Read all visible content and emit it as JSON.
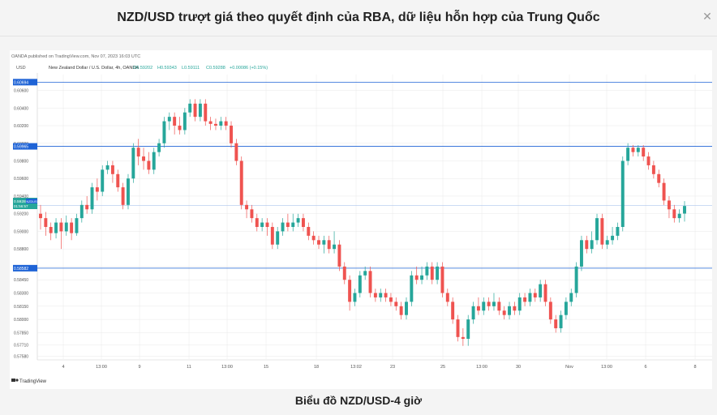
{
  "header": {
    "title": "NZD/USD trượt giá theo quyết định của RBA, dữ liệu hỗn hợp của Trung Quốc",
    "close_icon": "close-icon"
  },
  "chart": {
    "publisher": "OANDA published on TradingView.com, Nov 07, 2023 16:03 UTC",
    "axis_label": "USD",
    "symbol": "New Zealand Dollar / U.S. Dollar, 4h, OANDA",
    "ohlc": {
      "o": "O0.59202",
      "h": "H0.59343",
      "l": "L0.59111",
      "c": "C0.59288",
      "chg": "+0.00086 (+0.15%)"
    },
    "price_tag_value": "0.59288",
    "price_tag_name": "NZDUSD",
    "price_tag_timer": "01:56:57",
    "colors": {
      "up": "#26a69a",
      "down": "#ef5350",
      "level": "#1e63d6",
      "grid": "#e8e8e8"
    },
    "brand": "TradingView",
    "brand_icon": "tradingview-logo-icon"
  },
  "caption": "Biểu đồ NZD/USD-4 giờ",
  "chart_data": {
    "type": "candlestick",
    "title": "New Zealand Dollar / U.S. Dollar, 4h, OANDA",
    "ylabel": "USD",
    "ylim": [
      0.5755,
      0.6078
    ],
    "y_ticks": [
      "0.60600",
      "0.60400",
      "0.60200",
      "0.60000",
      "0.59800",
      "0.59600",
      "0.59400",
      "0.59200",
      "0.59000",
      "0.58800",
      "0.58600",
      "0.58450",
      "0.58300",
      "0.58150",
      "0.58000",
      "0.57850",
      "0.57710",
      "0.57580"
    ],
    "x_ticks": [
      "4",
      "13:00",
      "9",
      "11",
      "13:00",
      "15",
      "18",
      "13:02",
      "23",
      "25",
      "13:00",
      "30",
      "Nov",
      "13:00",
      "6",
      "8"
    ],
    "levels": [
      {
        "label": "0.60694",
        "value": 0.60694
      },
      {
        "label": "0.59965",
        "value": 0.59965
      },
      {
        "label": "0.58582",
        "value": 0.58582
      }
    ],
    "secondary_level": {
      "label": "0.59294",
      "value": 0.59294
    },
    "last_price": 0.59288,
    "candles": [
      [
        0.592,
        0.5915,
        0.593,
        0.5902
      ],
      [
        0.5915,
        0.5905,
        0.5922,
        0.5895
      ],
      [
        0.5905,
        0.5898,
        0.591,
        0.589
      ],
      [
        0.5898,
        0.591,
        0.5915,
        0.5892
      ],
      [
        0.591,
        0.59,
        0.5915,
        0.588
      ],
      [
        0.59,
        0.591,
        0.5918,
        0.5895
      ],
      [
        0.591,
        0.5898,
        0.5915,
        0.589
      ],
      [
        0.5898,
        0.5915,
        0.592,
        0.5895
      ],
      [
        0.5915,
        0.593,
        0.5935,
        0.591
      ],
      [
        0.593,
        0.5925,
        0.594,
        0.592
      ],
      [
        0.5925,
        0.595,
        0.5955,
        0.592
      ],
      [
        0.595,
        0.5945,
        0.596,
        0.5935
      ],
      [
        0.5945,
        0.597,
        0.5975,
        0.594
      ],
      [
        0.597,
        0.5975,
        0.598,
        0.5965
      ],
      [
        0.5975,
        0.5965,
        0.598,
        0.5955
      ],
      [
        0.5965,
        0.595,
        0.597,
        0.5945
      ],
      [
        0.595,
        0.593,
        0.5955,
        0.5925
      ],
      [
        0.593,
        0.596,
        0.5965,
        0.5925
      ],
      [
        0.596,
        0.5995,
        0.6,
        0.5955
      ],
      [
        0.5995,
        0.5985,
        0.6005,
        0.5975
      ],
      [
        0.5985,
        0.598,
        0.5995,
        0.597
      ],
      [
        0.598,
        0.597,
        0.599,
        0.5965
      ],
      [
        0.597,
        0.599,
        0.5995,
        0.5965
      ],
      [
        0.599,
        0.6,
        0.6005,
        0.5985
      ],
      [
        0.6,
        0.6025,
        0.603,
        0.5995
      ],
      [
        0.6025,
        0.603,
        0.6035,
        0.6015
      ],
      [
        0.603,
        0.602,
        0.6035,
        0.601
      ],
      [
        0.602,
        0.6015,
        0.603,
        0.601
      ],
      [
        0.6015,
        0.6035,
        0.604,
        0.601
      ],
      [
        0.6035,
        0.6045,
        0.605,
        0.603
      ],
      [
        0.6045,
        0.603,
        0.605,
        0.6025
      ],
      [
        0.603,
        0.6045,
        0.605,
        0.6025
      ],
      [
        0.6045,
        0.6025,
        0.605,
        0.602
      ],
      [
        0.6025,
        0.6022,
        0.603,
        0.6015
      ],
      [
        0.6022,
        0.602,
        0.6028,
        0.6015
      ],
      [
        0.602,
        0.6025,
        0.603,
        0.6015
      ],
      [
        0.6025,
        0.602,
        0.603,
        0.6015
      ],
      [
        0.602,
        0.6,
        0.6025,
        0.5995
      ],
      [
        0.6,
        0.598,
        0.6005,
        0.5975
      ],
      [
        0.598,
        0.593,
        0.5985,
        0.5925
      ],
      [
        0.593,
        0.5925,
        0.5935,
        0.5915
      ],
      [
        0.5925,
        0.5915,
        0.593,
        0.591
      ],
      [
        0.5915,
        0.5905,
        0.592,
        0.59
      ],
      [
        0.5905,
        0.591,
        0.5915,
        0.59
      ],
      [
        0.591,
        0.5905,
        0.5915,
        0.5895
      ],
      [
        0.5905,
        0.5885,
        0.591,
        0.588
      ],
      [
        0.5885,
        0.59,
        0.5905,
        0.588
      ],
      [
        0.59,
        0.591,
        0.5915,
        0.5895
      ],
      [
        0.591,
        0.5905,
        0.592,
        0.59
      ],
      [
        0.5905,
        0.591,
        0.592,
        0.59
      ],
      [
        0.591,
        0.5915,
        0.592,
        0.5905
      ],
      [
        0.5915,
        0.5905,
        0.592,
        0.59
      ],
      [
        0.5905,
        0.5895,
        0.591,
        0.589
      ],
      [
        0.5895,
        0.589,
        0.59,
        0.5885
      ],
      [
        0.589,
        0.5885,
        0.5895,
        0.588
      ],
      [
        0.5885,
        0.589,
        0.5895,
        0.5875
      ],
      [
        0.589,
        0.588,
        0.5895,
        0.5875
      ],
      [
        0.588,
        0.5885,
        0.59,
        0.5875
      ],
      [
        0.5885,
        0.586,
        0.589,
        0.5855
      ],
      [
        0.586,
        0.5845,
        0.5865,
        0.584
      ],
      [
        0.5845,
        0.582,
        0.585,
        0.581
      ],
      [
        0.582,
        0.583,
        0.5835,
        0.5815
      ],
      [
        0.583,
        0.585,
        0.5855,
        0.5825
      ],
      [
        0.585,
        0.5855,
        0.586,
        0.5845
      ],
      [
        0.5855,
        0.583,
        0.586,
        0.5825
      ],
      [
        0.583,
        0.5825,
        0.5835,
        0.582
      ],
      [
        0.5825,
        0.583,
        0.5835,
        0.582
      ],
      [
        0.583,
        0.5825,
        0.5835,
        0.582
      ],
      [
        0.5825,
        0.582,
        0.583,
        0.5815
      ],
      [
        0.582,
        0.5815,
        0.5825,
        0.581
      ],
      [
        0.5815,
        0.5805,
        0.582,
        0.58
      ],
      [
        0.5805,
        0.582,
        0.5825,
        0.58
      ],
      [
        0.582,
        0.585,
        0.5855,
        0.5815
      ],
      [
        0.585,
        0.5845,
        0.586,
        0.584
      ],
      [
        0.5845,
        0.585,
        0.586,
        0.584
      ],
      [
        0.585,
        0.586,
        0.5865,
        0.5845
      ],
      [
        0.586,
        0.5845,
        0.5865,
        0.584
      ],
      [
        0.5845,
        0.586,
        0.5865,
        0.584
      ],
      [
        0.586,
        0.583,
        0.5865,
        0.5825
      ],
      [
        0.583,
        0.582,
        0.5835,
        0.5815
      ],
      [
        0.582,
        0.58,
        0.5825,
        0.5795
      ],
      [
        0.58,
        0.578,
        0.5805,
        0.5775
      ],
      [
        0.578,
        0.5778,
        0.579,
        0.577
      ],
      [
        0.5778,
        0.58,
        0.5805,
        0.577
      ],
      [
        0.58,
        0.5815,
        0.582,
        0.5795
      ],
      [
        0.5815,
        0.581,
        0.5825,
        0.5805
      ],
      [
        0.581,
        0.582,
        0.5825,
        0.5805
      ],
      [
        0.582,
        0.5815,
        0.5825,
        0.581
      ],
      [
        0.5815,
        0.582,
        0.583,
        0.581
      ],
      [
        0.582,
        0.581,
        0.5825,
        0.5805
      ],
      [
        0.581,
        0.5805,
        0.5815,
        0.58
      ],
      [
        0.5805,
        0.5815,
        0.582,
        0.58
      ],
      [
        0.5815,
        0.581,
        0.582,
        0.5805
      ],
      [
        0.581,
        0.5825,
        0.583,
        0.5805
      ],
      [
        0.5825,
        0.582,
        0.583,
        0.5815
      ],
      [
        0.582,
        0.583,
        0.5835,
        0.5815
      ],
      [
        0.583,
        0.5825,
        0.5835,
        0.582
      ],
      [
        0.5825,
        0.584,
        0.5845,
        0.582
      ],
      [
        0.584,
        0.582,
        0.5845,
        0.5815
      ],
      [
        0.582,
        0.58,
        0.5825,
        0.5795
      ],
      [
        0.58,
        0.579,
        0.5805,
        0.5785
      ],
      [
        0.579,
        0.5805,
        0.581,
        0.5785
      ],
      [
        0.5805,
        0.582,
        0.5825,
        0.58
      ],
      [
        0.582,
        0.583,
        0.5835,
        0.5815
      ],
      [
        0.583,
        0.586,
        0.5865,
        0.5825
      ],
      [
        0.586,
        0.589,
        0.5895,
        0.5855
      ],
      [
        0.589,
        0.588,
        0.5895,
        0.5875
      ],
      [
        0.588,
        0.589,
        0.59,
        0.5875
      ],
      [
        0.589,
        0.5915,
        0.592,
        0.5885
      ],
      [
        0.5915,
        0.5885,
        0.592,
        0.588
      ],
      [
        0.5885,
        0.589,
        0.5895,
        0.588
      ],
      [
        0.589,
        0.5895,
        0.5905,
        0.5885
      ],
      [
        0.5895,
        0.5905,
        0.591,
        0.589
      ],
      [
        0.5905,
        0.598,
        0.5985,
        0.59
      ],
      [
        0.598,
        0.5995,
        0.6,
        0.5975
      ],
      [
        0.5995,
        0.599,
        0.5998,
        0.5985
      ],
      [
        0.599,
        0.5995,
        0.5998,
        0.5985
      ],
      [
        0.5995,
        0.5985,
        0.5998,
        0.598
      ],
      [
        0.5985,
        0.5975,
        0.599,
        0.597
      ],
      [
        0.5975,
        0.5965,
        0.598,
        0.596
      ],
      [
        0.5965,
        0.5955,
        0.597,
        0.595
      ],
      [
        0.5955,
        0.5935,
        0.596,
        0.593
      ],
      [
        0.5935,
        0.5925,
        0.594,
        0.5915
      ],
      [
        0.5925,
        0.5915,
        0.593,
        0.591
      ],
      [
        0.5915,
        0.592,
        0.5925,
        0.591
      ],
      [
        0.59202,
        0.59288,
        0.59343,
        0.59111
      ]
    ]
  }
}
